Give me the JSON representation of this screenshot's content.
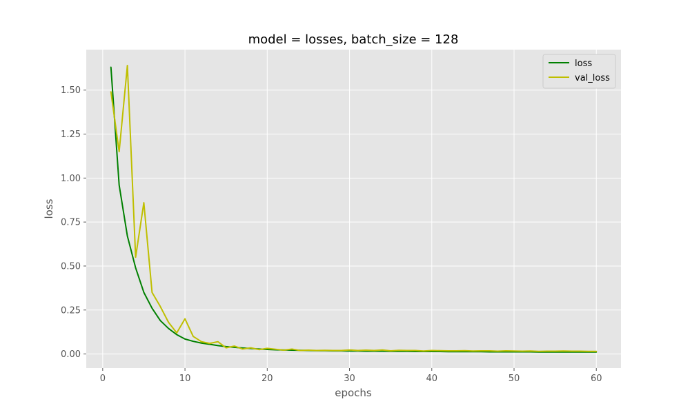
{
  "chart_data": {
    "type": "line",
    "title": "model = losses, batch_size = 128",
    "xlabel": "epochs",
    "ylabel": "loss",
    "xlim": [
      -2,
      63
    ],
    "ylim": [
      -0.08,
      1.73
    ],
    "xticks": [
      0,
      10,
      20,
      30,
      40,
      50,
      60
    ],
    "xtick_labels": [
      "0",
      "10",
      "20",
      "30",
      "40",
      "50",
      "60"
    ],
    "yticks": [
      0.0,
      0.25,
      0.5,
      0.75,
      1.0,
      1.25,
      1.5
    ],
    "ytick_labels": [
      "0.00",
      "0.25",
      "0.50",
      "0.75",
      "1.00",
      "1.25",
      "1.50"
    ],
    "grid": true,
    "legend_position": "top-right",
    "x": [
      1,
      2,
      3,
      4,
      5,
      6,
      7,
      8,
      9,
      10,
      11,
      12,
      13,
      14,
      15,
      16,
      17,
      18,
      19,
      20,
      21,
      22,
      23,
      24,
      25,
      26,
      27,
      28,
      29,
      30,
      31,
      32,
      33,
      34,
      35,
      36,
      37,
      38,
      39,
      40,
      41,
      42,
      43,
      44,
      45,
      46,
      47,
      48,
      49,
      50,
      51,
      52,
      53,
      54,
      55,
      56,
      57,
      58,
      59,
      60
    ],
    "series": [
      {
        "name": "loss",
        "color": "#008000",
        "values": [
          1.63,
          0.96,
          0.67,
          0.49,
          0.35,
          0.26,
          0.19,
          0.145,
          0.11,
          0.085,
          0.072,
          0.062,
          0.055,
          0.048,
          0.042,
          0.038,
          0.034,
          0.031,
          0.028,
          0.026,
          0.024,
          0.023,
          0.022,
          0.021,
          0.02,
          0.019,
          0.019,
          0.018,
          0.018,
          0.017,
          0.017,
          0.016,
          0.016,
          0.016,
          0.015,
          0.015,
          0.015,
          0.014,
          0.014,
          0.014,
          0.014,
          0.013,
          0.013,
          0.013,
          0.013,
          0.013,
          0.012,
          0.012,
          0.012,
          0.012,
          0.012,
          0.012,
          0.011,
          0.011,
          0.011,
          0.011,
          0.011,
          0.011,
          0.011,
          0.011
        ]
      },
      {
        "name": "val_loss",
        "color": "#bfbf00",
        "values": [
          1.49,
          1.15,
          1.64,
          0.55,
          0.86,
          0.35,
          0.27,
          0.18,
          0.12,
          0.2,
          0.1,
          0.07,
          0.06,
          0.07,
          0.035,
          0.045,
          0.028,
          0.035,
          0.025,
          0.032,
          0.027,
          0.022,
          0.028,
          0.02,
          0.022,
          0.02,
          0.021,
          0.02,
          0.02,
          0.023,
          0.02,
          0.022,
          0.02,
          0.023,
          0.018,
          0.021,
          0.02,
          0.02,
          0.017,
          0.02,
          0.019,
          0.018,
          0.018,
          0.019,
          0.017,
          0.018,
          0.018,
          0.016,
          0.018,
          0.017,
          0.016,
          0.017,
          0.015,
          0.016,
          0.016,
          0.017,
          0.016,
          0.016,
          0.015,
          0.015
        ]
      }
    ]
  }
}
